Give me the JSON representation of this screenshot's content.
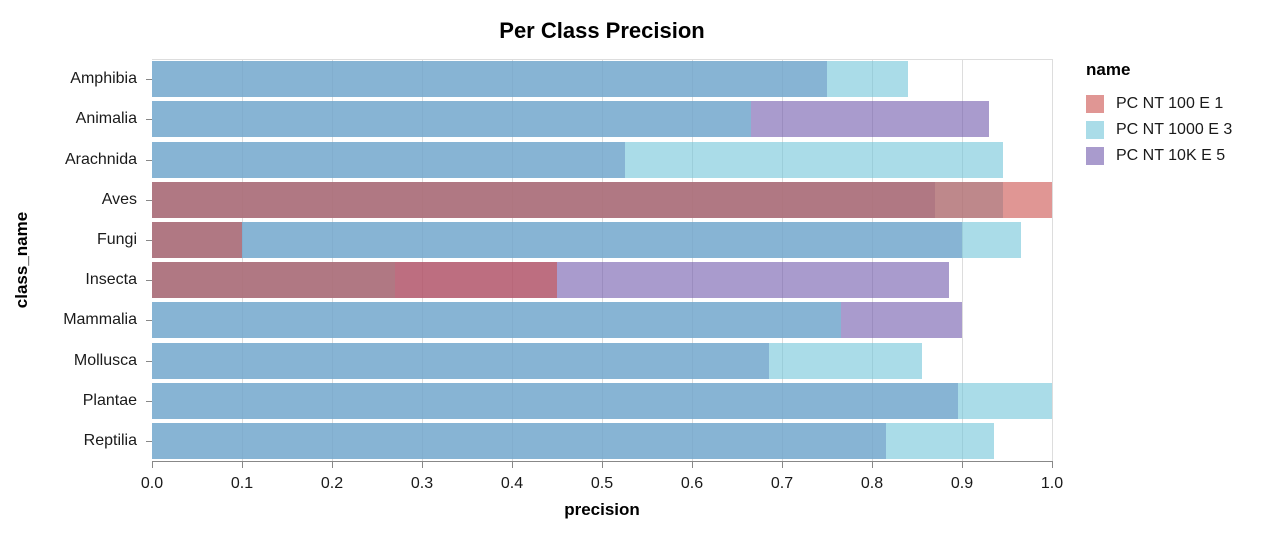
{
  "title": "Per Class Precision",
  "legend": {
    "title": "name",
    "entries": [
      {
        "label": "PC NT 100 E 1",
        "color": "#cb504d"
      },
      {
        "label": "PC NT 1000 E 3",
        "color": "#71c5d9"
      },
      {
        "label": "PC NT 10K E 5",
        "color": "#7058ac"
      }
    ]
  },
  "style": {
    "bar_opacity": 0.6,
    "grid_color": "#dddddd",
    "axis_color": "#888888",
    "view_border_color": "#dddddd"
  },
  "chart_data": {
    "type": "bar",
    "orientation": "horizontal",
    "title": "Per Class Precision",
    "xlabel": "precision",
    "ylabel": "class_name",
    "xlim": [
      0.0,
      1.0
    ],
    "x_tick_labels": [
      "0.0",
      "0.1",
      "0.2",
      "0.3",
      "0.4",
      "0.5",
      "0.6",
      "0.7",
      "0.8",
      "0.9",
      "1.0"
    ],
    "grid": true,
    "legend_position": "right",
    "categories": [
      "Amphibia",
      "Animalia",
      "Arachnida",
      "Aves",
      "Fungi",
      "Insecta",
      "Mammalia",
      "Mollusca",
      "Plantae",
      "Reptilia"
    ],
    "series": [
      {
        "name": "PC NT 100 E 1",
        "color": "#cb504d",
        "values": [
          null,
          null,
          null,
          1.0,
          0.1,
          0.45,
          null,
          null,
          null,
          null
        ]
      },
      {
        "name": "PC NT 1000 E 3",
        "color": "#71c5d9",
        "values": [
          0.84,
          0.665,
          0.945,
          0.945,
          0.965,
          0.27,
          0.765,
          0.855,
          1.0,
          0.935
        ]
      },
      {
        "name": "PC NT 10K E 5",
        "color": "#7058ac",
        "values": [
          0.75,
          0.93,
          0.525,
          0.87,
          0.9,
          0.885,
          0.9,
          0.685,
          0.895,
          0.815
        ]
      }
    ],
    "draw_order_bottom_to_top": [
      "PC NT 10K E 5",
      "PC NT 1000 E 3",
      "PC NT 100 E 1"
    ]
  }
}
